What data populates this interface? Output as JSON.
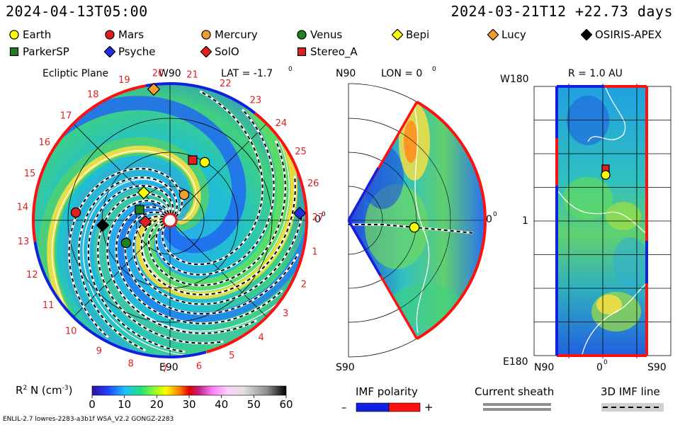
{
  "header": {
    "left_time": "2024-04-13T05:00",
    "right_time": "2024-03-21T12 +22.73 days"
  },
  "legend": [
    {
      "label": "Earth",
      "shape": "circle",
      "color": "#ffff00"
    },
    {
      "label": "Mars",
      "shape": "circle",
      "color": "#e02020"
    },
    {
      "label": "Mercury",
      "shape": "circle",
      "color": "#f0a030"
    },
    {
      "label": "Venus",
      "shape": "circle",
      "color": "#208020"
    },
    {
      "label": "Bepi",
      "shape": "diamond",
      "color": "#ffff00"
    },
    {
      "label": "Lucy",
      "shape": "diamond",
      "color": "#f0a030"
    },
    {
      "label": "OSIRIS-APEX",
      "shape": "diamond",
      "color": "#000000"
    },
    {
      "label": "ParkerSP",
      "shape": "square",
      "color": "#208020"
    },
    {
      "label": "Psyche",
      "shape": "diamond",
      "color": "#2030e0"
    },
    {
      "label": "SolO",
      "shape": "diamond",
      "color": "#e02020"
    },
    {
      "label": "Stereo_A",
      "shape": "square",
      "color": "#e02020"
    }
  ],
  "panels": {
    "ecliptic": {
      "title": "Ecliptic Plane",
      "lat": "LAT = -1.7",
      "top_label": "W90",
      "bottom_label": "E90",
      "right_label": "0",
      "degree": "0"
    },
    "meridional": {
      "top_label": "N90",
      "lon": "LON = 0",
      "bottom_label": "S90",
      "right_label": "0",
      "degree": "0"
    },
    "sphere": {
      "r_label": "R = 1.0 AU",
      "top_left": "W180",
      "bottom_left": "E180",
      "mid_left": "1",
      "x_left": "N90",
      "x_mid": "0",
      "x_right": "S90",
      "degree": "0"
    }
  },
  "carrington_numbers": [
    "19",
    "20",
    "21",
    "22",
    "23",
    "24",
    "25",
    "26",
    "27",
    "1",
    "2",
    "3",
    "4",
    "5",
    "6",
    "7",
    "8",
    "9",
    "10",
    "11",
    "12",
    "13",
    "14",
    "15",
    "16",
    "17",
    "18"
  ],
  "colorbar": {
    "label_base": "R",
    "label_sup": "2",
    "label_rest": " N (cm",
    "label_exp": "-3",
    "label_close": ")",
    "ticks": [
      "0",
      "10",
      "20",
      "30",
      "40",
      "50",
      "60"
    ]
  },
  "imf": {
    "title": "IMF polarity",
    "minus": "–",
    "plus": "+"
  },
  "sheath": {
    "title": "Current sheath"
  },
  "imfline": {
    "title": "3D IMF line"
  },
  "footer": {
    "text": "ENLIL-2.7 lowres-2283-a3b1f WSA_V2.2 GONGZ-2283"
  }
}
